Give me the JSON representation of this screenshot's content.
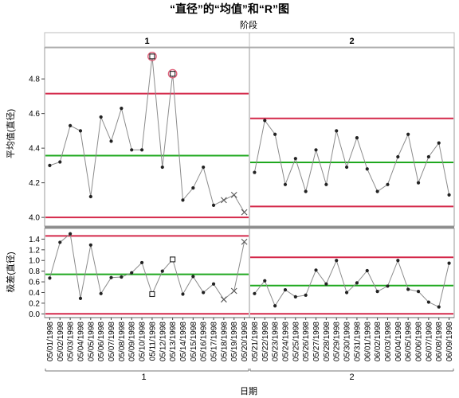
{
  "chart_data": {
    "type": "line",
    "title": "“直径”的“均值”和“R”图",
    "phase_label": "阶段",
    "phases": [
      "1",
      "2"
    ],
    "xlabel": "日期",
    "mean_chart": {
      "ylabel": "平均值(直径)",
      "ylim": [
        3.95,
        4.98
      ],
      "yticks": [
        "4.0",
        "4.2",
        "4.4",
        "4.6",
        "4.8"
      ],
      "limits": [
        {
          "phase": "1",
          "ucl": 4.715,
          "center": 4.357,
          "lcl": 4.0
        },
        {
          "phase": "2",
          "ucl": 4.572,
          "center": 4.318,
          "lcl": 4.063
        }
      ]
    },
    "range_chart": {
      "ylabel": "极差(直径)",
      "ylim": [
        -0.07,
        1.6
      ],
      "yticks": [
        "0.0",
        "0.2",
        "0.4",
        "0.6",
        "0.8",
        "1.0",
        "1.2",
        "1.4"
      ],
      "limits": [
        {
          "phase": "1",
          "ucl": 1.46,
          "center": 0.74,
          "lcl": 0.0
        },
        {
          "phase": "2",
          "ucl": 1.06,
          "center": 0.53,
          "lcl": 0.0
        }
      ]
    },
    "series": [
      {
        "date": "05/01/1998",
        "phase": "1",
        "mean": 4.3,
        "range": 0.67,
        "mark": "dot"
      },
      {
        "date": "05/02/1998",
        "phase": "1",
        "mean": 4.32,
        "range": 1.34,
        "mark": "dot"
      },
      {
        "date": "05/03/1998",
        "phase": "1",
        "mean": 4.53,
        "range": 1.5,
        "mark": "dot"
      },
      {
        "date": "05/04/1998",
        "phase": "1",
        "mean": 4.5,
        "range": 0.29,
        "mark": "dot"
      },
      {
        "date": "05/05/1998",
        "phase": "1",
        "mean": 4.12,
        "range": 1.29,
        "mark": "dot"
      },
      {
        "date": "05/06/1998",
        "phase": "1",
        "mean": 4.58,
        "range": 0.38,
        "mark": "dot"
      },
      {
        "date": "05/07/1998",
        "phase": "1",
        "mean": 4.44,
        "range": 0.68,
        "mark": "dot"
      },
      {
        "date": "05/08/1998",
        "phase": "1",
        "mean": 4.63,
        "range": 0.69,
        "mark": "dot"
      },
      {
        "date": "05/09/1998",
        "phase": "1",
        "mean": 4.39,
        "range": 0.77,
        "mark": "dot"
      },
      {
        "date": "05/10/1998",
        "phase": "1",
        "mean": 4.39,
        "range": 0.96,
        "mark": "dot"
      },
      {
        "date": "05/11/1998",
        "phase": "1",
        "mean": 4.93,
        "range": 0.37,
        "mark": "square",
        "flag_mean": true
      },
      {
        "date": "05/12/1998",
        "phase": "1",
        "mean": 4.29,
        "range": 0.8,
        "mark": "dot"
      },
      {
        "date": "05/13/1998",
        "phase": "1",
        "mean": 4.83,
        "range": 1.02,
        "mark": "square",
        "flag_mean": true
      },
      {
        "date": "05/14/1998",
        "phase": "1",
        "mean": 4.1,
        "range": 0.37,
        "mark": "dot"
      },
      {
        "date": "05/15/1998",
        "phase": "1",
        "mean": 4.17,
        "range": 0.7,
        "mark": "dot"
      },
      {
        "date": "05/16/1998",
        "phase": "1",
        "mean": 4.29,
        "range": 0.4,
        "mark": "dot"
      },
      {
        "date": "05/17/1998",
        "phase": "1",
        "mean": 4.07,
        "range": 0.56,
        "mark": "dot"
      },
      {
        "date": "05/18/1998",
        "phase": "1",
        "mean": 4.1,
        "range": 0.27,
        "mark": "x"
      },
      {
        "date": "05/19/1998",
        "phase": "1",
        "mean": 4.13,
        "range": 0.43,
        "mark": "x"
      },
      {
        "date": "05/20/1998",
        "phase": "1",
        "mean": 4.03,
        "range": 1.35,
        "mark": "x"
      },
      {
        "date": "05/21/1998",
        "phase": "2",
        "mean": 4.26,
        "range": 0.38,
        "mark": "dot"
      },
      {
        "date": "05/22/1998",
        "phase": "2",
        "mean": 4.56,
        "range": 0.62,
        "mark": "dot"
      },
      {
        "date": "05/23/1998",
        "phase": "2",
        "mean": 4.48,
        "range": 0.15,
        "mark": "dot"
      },
      {
        "date": "05/24/1998",
        "phase": "2",
        "mean": 4.19,
        "range": 0.45,
        "mark": "dot"
      },
      {
        "date": "05/25/1998",
        "phase": "2",
        "mean": 4.34,
        "range": 0.32,
        "mark": "dot"
      },
      {
        "date": "05/26/1998",
        "phase": "2",
        "mean": 4.15,
        "range": 0.35,
        "mark": "dot"
      },
      {
        "date": "05/27/1998",
        "phase": "2",
        "mean": 4.39,
        "range": 0.82,
        "mark": "dot"
      },
      {
        "date": "05/28/1998",
        "phase": "2",
        "mean": 4.19,
        "range": 0.56,
        "mark": "dot"
      },
      {
        "date": "05/29/1998",
        "phase": "2",
        "mean": 4.5,
        "range": 1.0,
        "mark": "dot"
      },
      {
        "date": "05/30/1998",
        "phase": "2",
        "mean": 4.29,
        "range": 0.4,
        "mark": "dot"
      },
      {
        "date": "05/31/1998",
        "phase": "2",
        "mean": 4.46,
        "range": 0.58,
        "mark": "dot"
      },
      {
        "date": "06/01/1998",
        "phase": "2",
        "mean": 4.28,
        "range": 0.81,
        "mark": "dot"
      },
      {
        "date": "06/02/1998",
        "phase": "2",
        "mean": 4.15,
        "range": 0.42,
        "mark": "dot"
      },
      {
        "date": "06/03/1998",
        "phase": "2",
        "mean": 4.19,
        "range": 0.52,
        "mark": "dot"
      },
      {
        "date": "06/04/1998",
        "phase": "2",
        "mean": 4.35,
        "range": 1.0,
        "mark": "dot"
      },
      {
        "date": "06/05/1998",
        "phase": "2",
        "mean": 4.48,
        "range": 0.46,
        "mark": "dot"
      },
      {
        "date": "06/06/1998",
        "phase": "2",
        "mean": 4.2,
        "range": 0.42,
        "mark": "dot"
      },
      {
        "date": "06/07/1998",
        "phase": "2",
        "mean": 4.35,
        "range": 0.22,
        "mark": "dot"
      },
      {
        "date": "06/08/1998",
        "phase": "2",
        "mean": 4.43,
        "range": 0.13,
        "mark": "dot"
      },
      {
        "date": "06/09/1998",
        "phase": "2",
        "mean": 4.13,
        "range": 0.95,
        "mark": "dot"
      }
    ],
    "colors": {
      "limit": "#d4294a",
      "center": "#1fa81f",
      "line": "#8c8c8c",
      "marker": "#222222",
      "flag": "#e0607a"
    },
    "grid": false
  }
}
